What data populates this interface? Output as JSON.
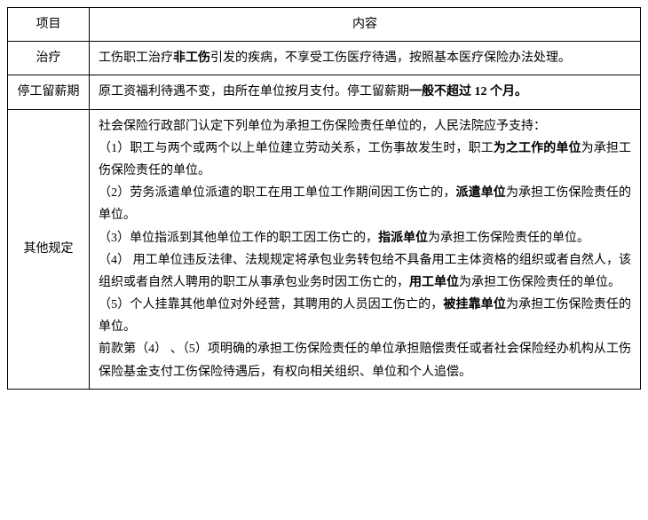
{
  "header": {
    "col1": "项目",
    "col2": "内容"
  },
  "rows": [
    {
      "label": "治疗",
      "content_parts": [
        {
          "text": "工伤职工治疗",
          "bold": false
        },
        {
          "text": "非工伤",
          "bold": true
        },
        {
          "text": "引发的疾病，不享受工伤医疗待遇，按照基本医疗保险办法处理。",
          "bold": false
        }
      ]
    },
    {
      "label": "停工留薪期",
      "content_parts": [
        {
          "text": "原工资福利待遇不变，由所在单位按月支付。停工留薪期",
          "bold": false
        },
        {
          "text": "一般不超过 12 个月。",
          "bold": true
        }
      ]
    },
    {
      "label": "其他规定",
      "lines": [
        [
          {
            "text": "社会保险行政部门认定下列单位为承担工伤保险责任单位的，人民法院应予支持：",
            "bold": false
          }
        ],
        [
          {
            "text": "（1）职工与两个或两个以上单位建立劳动关系，工伤事故发生时，职工",
            "bold": false
          },
          {
            "text": "为之工作的单位",
            "bold": true
          },
          {
            "text": "为承担工伤保险责任的单位。",
            "bold": false
          }
        ],
        [
          {
            "text": "（2）劳务派遣单位派遣的职工在用工单位工作期间因工伤亡的，",
            "bold": false
          },
          {
            "text": "派遣单位",
            "bold": true
          },
          {
            "text": "为承担工伤保险责任的单位。",
            "bold": false
          }
        ],
        [
          {
            "text": "（3）单位指派到其他单位工作的职工因工伤亡的，",
            "bold": false
          },
          {
            "text": "指派单位",
            "bold": true
          },
          {
            "text": "为承担工伤保险责任的单位。",
            "bold": false
          }
        ],
        [
          {
            "text": "（4） 用工单位违反法律、法规规定将承包业务转包给不具备用工主体资格的组织或者自然人，该组织或者自然人聘用的职工从事承包业务时因工伤亡的，",
            "bold": false
          },
          {
            "text": "用工单位",
            "bold": true
          },
          {
            "text": "为承担工伤保险责任的单位。",
            "bold": false
          }
        ],
        [
          {
            "text": "（5）个人挂靠其他单位对外经营，其聘用的人员因工伤亡的，",
            "bold": false
          },
          {
            "text": "被挂靠单位",
            "bold": true
          },
          {
            "text": "为承担工伤保险责任的单位。",
            "bold": false
          }
        ],
        [
          {
            "text": "前款第（4） 、（5）项明确的承担工伤保险责任的单位承担赔偿责任或者社会保险经办机构从工伤保险基金支付工伤保险待遇后，有权向相关组织、单位和个人追偿。",
            "bold": false
          }
        ]
      ]
    }
  ]
}
